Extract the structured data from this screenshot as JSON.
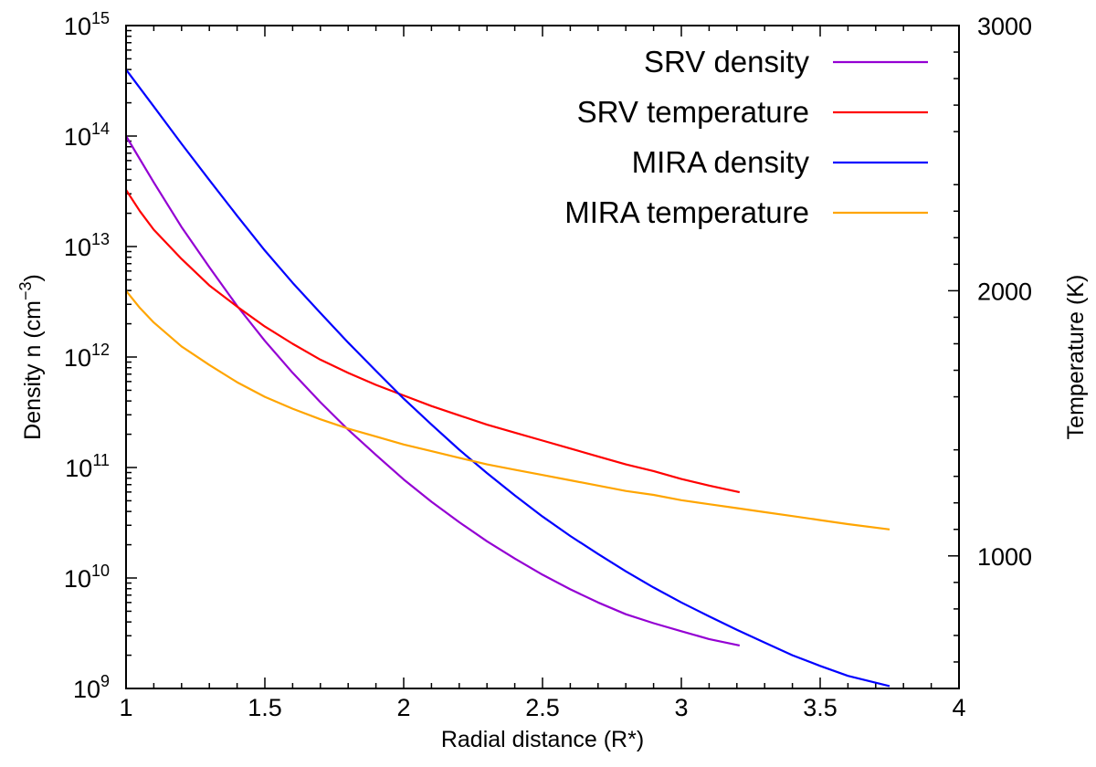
{
  "chart_data": {
    "type": "line",
    "xlabel": "Radial distance (R*)",
    "ylabel_left_base": "Density n (cm",
    "ylabel_left_exp": "−3",
    "ylabel_left_end": ")",
    "ylabel_right": "Temperature (K)",
    "xlim": [
      1,
      4
    ],
    "ylim_left_log10": [
      9,
      15
    ],
    "ylim_right": [
      500,
      3000
    ],
    "x_ticks": [
      {
        "value": 1,
        "label": "1"
      },
      {
        "value": 1.5,
        "label": "1.5"
      },
      {
        "value": 2,
        "label": "2"
      },
      {
        "value": 2.5,
        "label": "2.5"
      },
      {
        "value": 3,
        "label": "3"
      },
      {
        "value": 3.5,
        "label": "3.5"
      },
      {
        "value": 4,
        "label": "4"
      }
    ],
    "y_left_ticks": [
      {
        "exp": 9,
        "base": "10",
        "sup": "9"
      },
      {
        "exp": 10,
        "base": "10",
        "sup": "10"
      },
      {
        "exp": 11,
        "base": "10",
        "sup": "11"
      },
      {
        "exp": 12,
        "base": "10",
        "sup": "12"
      },
      {
        "exp": 13,
        "base": "10",
        "sup": "13"
      },
      {
        "exp": 14,
        "base": "10",
        "sup": "14"
      },
      {
        "exp": 15,
        "base": "10",
        "sup": "15"
      }
    ],
    "y_right_ticks": [
      {
        "value": 1000,
        "label": "1000"
      },
      {
        "value": 2000,
        "label": "2000"
      },
      {
        "value": 3000,
        "label": "3000"
      }
    ],
    "legend_position": "top-right",
    "series": [
      {
        "name": "SRV density",
        "axis": "left",
        "color": "#9400d3",
        "x": [
          1.0,
          1.1,
          1.2,
          1.3,
          1.4,
          1.5,
          1.6,
          1.7,
          1.8,
          1.9,
          2.0,
          2.1,
          2.2,
          2.3,
          2.4,
          2.5,
          2.6,
          2.7,
          2.8,
          2.9,
          3.0,
          3.1,
          3.21
        ],
        "y": [
          100000000000000.0,
          38000000000000.0,
          15000000000000.0,
          6500000000000.0,
          2900000000000.0,
          1400000000000.0,
          720000000000.0,
          390000000000.0,
          220000000000.0,
          130000000000.0,
          78000000000.0,
          49000000000.0,
          32000000000.0,
          21500000000.0,
          15000000000.0,
          10700000000.0,
          7900000000.0,
          6000000000.0,
          4700000000.0,
          3900000000.0,
          3300000000.0,
          2800000000.0,
          2450000000.0
        ]
      },
      {
        "name": "SRV temperature",
        "axis": "right",
        "color": "#ff0000",
        "x": [
          1.0,
          1.05,
          1.1,
          1.2,
          1.3,
          1.4,
          1.5,
          1.6,
          1.7,
          1.8,
          1.9,
          2.0,
          2.1,
          2.2,
          2.3,
          2.4,
          2.5,
          2.6,
          2.7,
          2.8,
          2.9,
          3.0,
          3.1,
          3.21
        ],
        "y": [
          2380,
          2300,
          2230,
          2120,
          2020,
          1940,
          1865,
          1800,
          1740,
          1690,
          1645,
          1605,
          1565,
          1530,
          1495,
          1465,
          1435,
          1405,
          1375,
          1345,
          1320,
          1290,
          1265,
          1240
        ]
      },
      {
        "name": "MIRA density",
        "axis": "left",
        "color": "#0000ff",
        "x": [
          1.0,
          1.1,
          1.2,
          1.3,
          1.4,
          1.5,
          1.6,
          1.7,
          1.8,
          1.9,
          2.0,
          2.1,
          2.2,
          2.3,
          2.4,
          2.5,
          2.6,
          2.7,
          2.8,
          2.9,
          3.0,
          3.1,
          3.2,
          3.3,
          3.4,
          3.5,
          3.6,
          3.75
        ],
        "y": [
          400000000000000.0,
          185000000000000.0,
          85000000000000.0,
          40000000000000.0,
          19000000000000.0,
          9200000000000.0,
          4700000000000.0,
          2500000000000.0,
          1350000000000.0,
          750000000000.0,
          420000000000.0,
          245000000000.0,
          145000000000.0,
          89000000000.0,
          56000000000.0,
          36000000000.0,
          24000000000.0,
          16500000000.0,
          11500000000.0,
          8200000000.0,
          6000000000.0,
          4500000000.0,
          3400000000.0,
          2600000000.0,
          2000000000.0,
          1600000000.0,
          1300000000.0,
          1050000000.0
        ]
      },
      {
        "name": "MIRA temperature",
        "axis": "right",
        "color": "#ffa500",
        "x": [
          1.0,
          1.05,
          1.1,
          1.2,
          1.3,
          1.4,
          1.5,
          1.6,
          1.7,
          1.8,
          1.9,
          2.0,
          2.1,
          2.2,
          2.3,
          2.4,
          2.5,
          2.6,
          2.7,
          2.8,
          2.9,
          3.0,
          3.1,
          3.2,
          3.3,
          3.4,
          3.5,
          3.6,
          3.75
        ],
        "y": [
          2000,
          1935,
          1880,
          1790,
          1720,
          1655,
          1600,
          1555,
          1515,
          1480,
          1450,
          1420,
          1395,
          1370,
          1345,
          1325,
          1305,
          1285,
          1265,
          1245,
          1230,
          1210,
          1195,
          1180,
          1165,
          1150,
          1135,
          1120,
          1100
        ]
      }
    ]
  }
}
